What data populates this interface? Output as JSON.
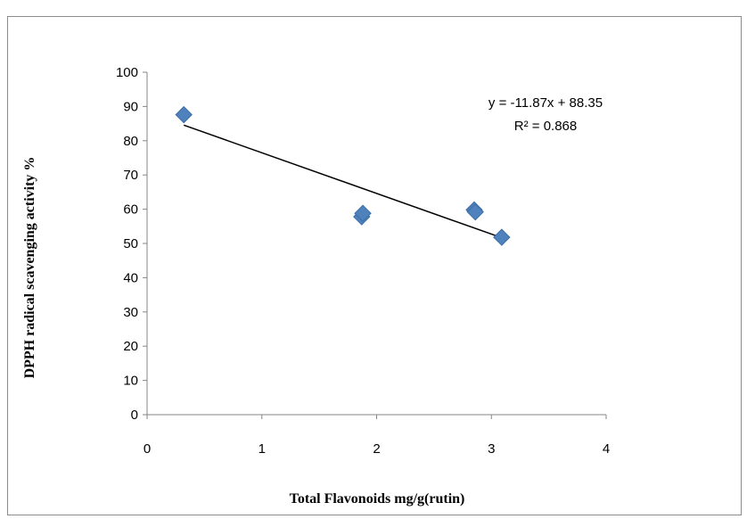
{
  "chart_data": {
    "type": "scatter",
    "title": "",
    "xlabel": "Total Flavonoids mg/g(rutin)",
    "ylabel": "DPPH radical scavenging activity %",
    "xlim": [
      0,
      4
    ],
    "ylim": [
      0,
      100
    ],
    "x_ticks": [
      "0",
      "1",
      "2",
      "3",
      "4"
    ],
    "y_ticks": [
      "0",
      "10",
      "20",
      "30",
      "40",
      "50",
      "60",
      "70",
      "80",
      "90",
      "100"
    ],
    "points": [
      {
        "x": 0.32,
        "y": 87.6
      },
      {
        "x": 1.87,
        "y": 57.8
      },
      {
        "x": 1.88,
        "y": 58.8
      },
      {
        "x": 2.85,
        "y": 59.8
      },
      {
        "x": 2.86,
        "y": 59.2
      },
      {
        "x": 3.09,
        "y": 51.8
      }
    ],
    "trendline": {
      "slope": -11.87,
      "intercept": 88.35,
      "x_range": [
        0.32,
        3.12
      ]
    },
    "equation_label": "y = -11.87x + 88.35",
    "r2_label": "R² = 0.868",
    "marker_color": "#4f81bd",
    "marker_edge_color": "#3a6ea5",
    "trendline_color": "#000000",
    "grid": false,
    "legend": "none"
  }
}
